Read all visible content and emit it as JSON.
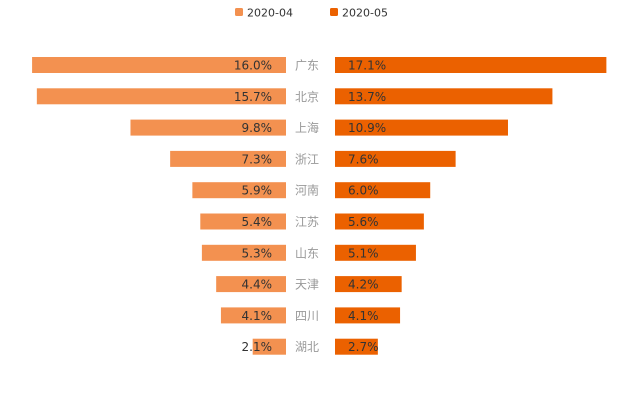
{
  "chart_data": {
    "type": "bar",
    "orientation": "horizontal-butterfly",
    "title": "",
    "xlabel": "",
    "ylabel": "",
    "grid": false,
    "legend_position": "top-center",
    "categories": [
      "广东",
      "北京",
      "上海",
      "浙江",
      "河南",
      "江苏",
      "山东",
      "天津",
      "四川",
      "湖北"
    ],
    "series": [
      {
        "name": "2020-04",
        "color": "#F39150",
        "side": "left",
        "values": [
          16.0,
          15.7,
          9.8,
          7.3,
          5.9,
          5.4,
          5.3,
          4.4,
          4.1,
          2.1
        ],
        "labels": [
          "16.0%",
          "15.7%",
          "9.8%",
          "7.3%",
          "5.9%",
          "5.4%",
          "5.3%",
          "4.4%",
          "4.1%",
          "2.1%"
        ]
      },
      {
        "name": "2020-05",
        "color": "#EB6100",
        "side": "right",
        "values": [
          17.1,
          13.7,
          10.9,
          7.6,
          6.0,
          5.6,
          5.1,
          4.2,
          4.1,
          2.7
        ],
        "labels": [
          "17.1%",
          "13.7%",
          "10.9%",
          "7.6%",
          "6.0%",
          "5.6%",
          "5.1%",
          "4.2%",
          "4.1%",
          "2.7%"
        ]
      }
    ],
    "unit": "%"
  }
}
